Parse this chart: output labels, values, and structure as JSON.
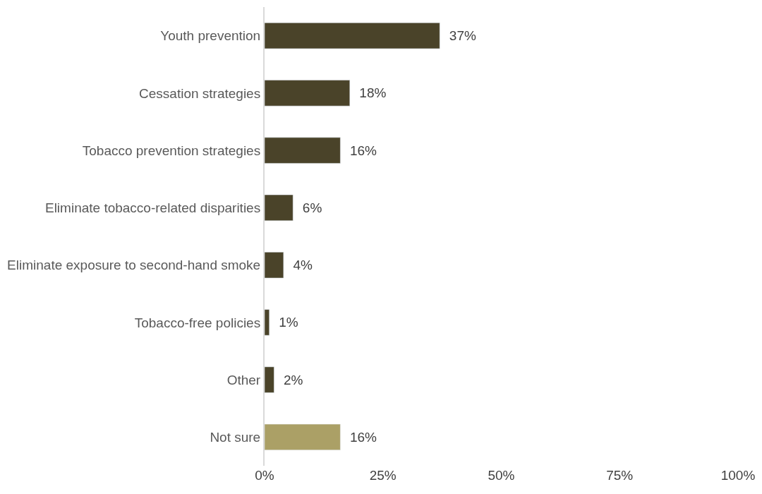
{
  "chart_data": {
    "type": "bar",
    "orientation": "horizontal",
    "categories": [
      "Youth prevention",
      "Cessation strategies",
      "Tobacco prevention strategies",
      "Eliminate tobacco-related disparities",
      "Eliminate exposure to second-hand smoke",
      "Tobacco-free policies",
      "Other",
      "Not sure"
    ],
    "values": [
      37,
      18,
      16,
      6,
      4,
      1,
      2,
      16
    ],
    "colors": [
      "#4a4329",
      "#4a4329",
      "#4a4329",
      "#4a4329",
      "#4a4329",
      "#4a4329",
      "#4a4329",
      "#aba066"
    ],
    "value_labels": [
      "37%",
      "18%",
      "16%",
      "6%",
      "4%",
      "1%",
      "2%",
      "16%"
    ],
    "xlim": [
      0,
      100
    ],
    "xticks": [
      {
        "value": 0,
        "label": "0%"
      },
      {
        "value": 25,
        "label": "25%"
      },
      {
        "value": 50,
        "label": "50%"
      },
      {
        "value": 75,
        "label": "75%"
      },
      {
        "value": 100,
        "label": "100%"
      }
    ],
    "data_labels": false
  }
}
